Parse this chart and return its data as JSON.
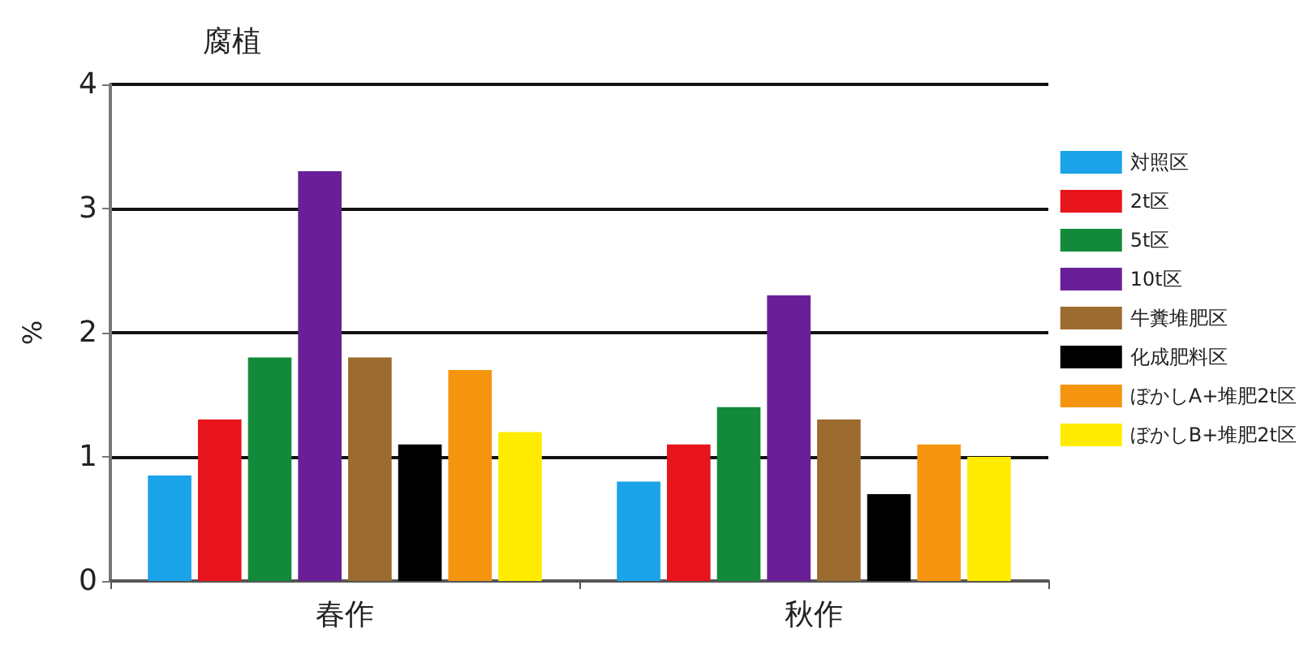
{
  "chart_data": {
    "type": "bar",
    "title": "腐植",
    "ylabel": "%",
    "categories": [
      "春作",
      "秋作"
    ],
    "series": [
      {
        "name": "対照区",
        "color": "#1aa3e8",
        "values": [
          0.85,
          0.8
        ]
      },
      {
        "name": "2t区",
        "color": "#e8141c",
        "values": [
          1.3,
          1.1
        ]
      },
      {
        "name": "5t区",
        "color": "#138a3a",
        "values": [
          1.8,
          1.4
        ]
      },
      {
        "name": "10t区",
        "color": "#6a1f99",
        "values": [
          3.3,
          2.3
        ]
      },
      {
        "name": "牛糞堆肥区",
        "color": "#9c6b30",
        "values": [
          1.8,
          1.3
        ]
      },
      {
        "name": "化成肥料区",
        "color": "#000000",
        "values": [
          1.1,
          0.7
        ]
      },
      {
        "name": "ぼかしA+堆肥2t区",
        "color": "#f5950f",
        "values": [
          1.7,
          1.1
        ]
      },
      {
        "name": "ぼかしB+堆肥2t区",
        "color": "#ffec00",
        "values": [
          1.2,
          1.0
        ]
      }
    ],
    "ylim": [
      0,
      4
    ],
    "yticks": [
      0,
      1,
      2,
      3,
      4
    ],
    "grid": "y",
    "legend": "right"
  }
}
